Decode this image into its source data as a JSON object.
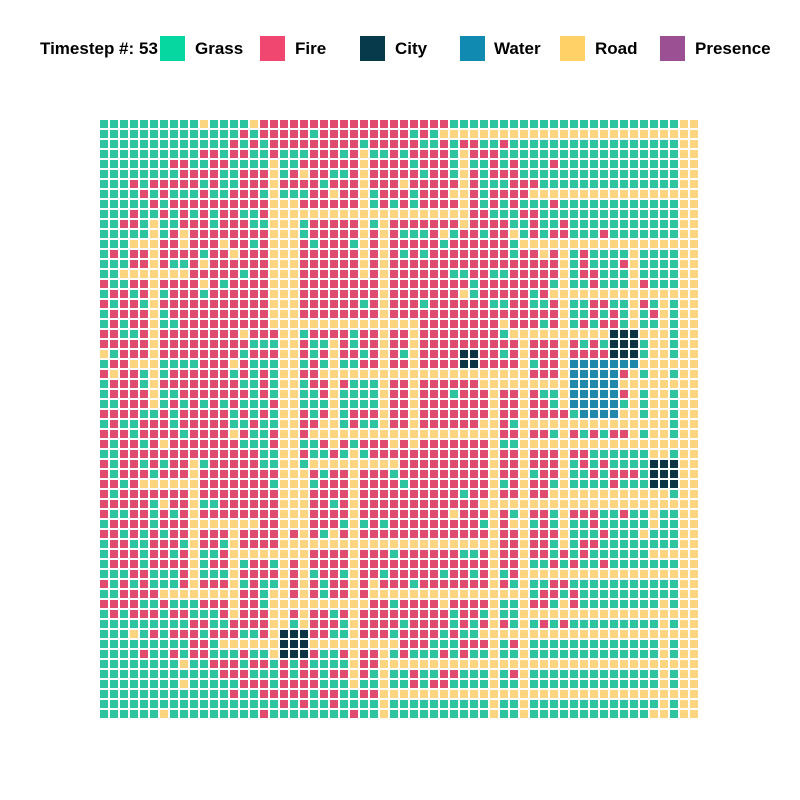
{
  "header": {
    "timestep_label": "Timestep #:",
    "timestep_value": "53"
  },
  "legend": [
    {
      "name": "Grass",
      "color": "#06d6a0"
    },
    {
      "name": "Fire",
      "color": "#ef476f"
    },
    {
      "name": "City",
      "color": "#073b4c"
    },
    {
      "name": "Water",
      "color": "#118ab2"
    },
    {
      "name": "Road",
      "color": "#ffd166"
    },
    {
      "name": "Presence",
      "color": "#9b5094"
    }
  ],
  "grid": {
    "rows": 60,
    "cols": 60,
    "cell_colors": {
      "grass": "#2ec4a0",
      "fire": "#df4c70",
      "city": "#0d3444",
      "water": "#1f88ab",
      "road": "#fbd580"
    }
  }
}
